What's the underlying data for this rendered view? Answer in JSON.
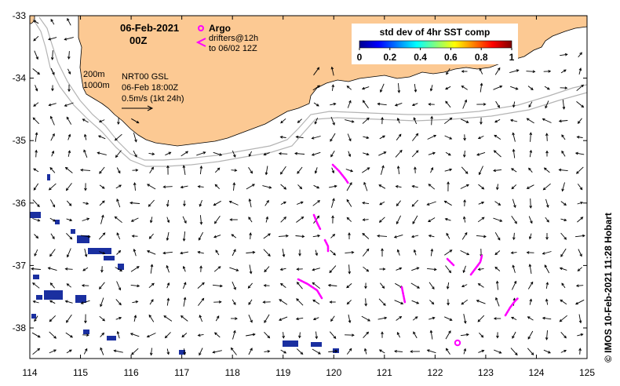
{
  "title": {
    "date": "06-Feb-2021",
    "time": "00Z"
  },
  "legend": {
    "argo_label": "Argo",
    "drifters_label": "drifters@12h",
    "drifters_to": "to 06/02 12Z",
    "depth_200": "200m",
    "depth_1000": "1000m",
    "source": "NRT00 GSL",
    "source_time": "06-Feb 18:00Z",
    "vector_scale": "0.5m/s (1kt 24h)"
  },
  "colorbar": {
    "title": "std dev of 4hr SST comp",
    "ticks": [
      "0",
      "0.2",
      "0.4",
      "0.6",
      "0.8",
      "1"
    ]
  },
  "axes": {
    "lon_ticks": [
      "114",
      "115",
      "116",
      "117",
      "118",
      "119",
      "120",
      "121",
      "122",
      "123",
      "124",
      "125"
    ],
    "lat_ticks": [
      "-33",
      "-34",
      "-35",
      "-36",
      "-37",
      "-38"
    ]
  },
  "credit": "© IMOS 10-Feb-2021 11:28 Hobart",
  "colors": {
    "land": "#fcc993",
    "argo": "#ff00ff",
    "drifters": "#ff00ff",
    "sst_low": "#1a2fa0",
    "isobath": "#b4b4b4"
  }
}
